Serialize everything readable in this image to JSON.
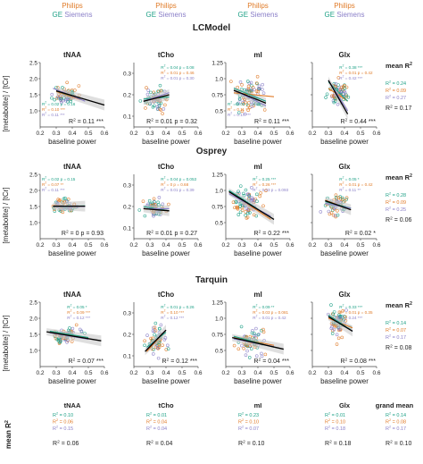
{
  "colors": {
    "philips": "#E07B28",
    "ge": "#1FA187",
    "siemens": "#8A7FC8",
    "ci_band": "#C9C9C9",
    "mean_line": "#000000",
    "text": "#222222",
    "axis": "#444444"
  },
  "legend": {
    "philips": "Philips",
    "ge": "GE",
    "siemens": "Siemens"
  },
  "y_axis_label": "[metabolite] / [tCr]",
  "x_axis_label": "baseline power",
  "sections": [
    {
      "title": "LCModel",
      "mean_header": "mean R",
      "mean_values": [
        "R² = 0.24",
        "R² = 0.09",
        "R² = 0.27"
      ],
      "mean_total": "R² = 0.17"
    },
    {
      "title": "Osprey",
      "mean_header": "mean R",
      "mean_values": [
        "R² = 0.28",
        "R² = 0.09",
        "R² = 0.25"
      ],
      "mean_total": "R² = 0.06"
    },
    {
      "title": "Tarquin",
      "mean_header": "mean R",
      "mean_values": [
        "R² = 0.14",
        "R² = 0.07",
        "R² = 0.17"
      ],
      "mean_total": "R² = 0.08"
    }
  ],
  "bottom": {
    "row_label": "mean R",
    "grand_header": "grand mean",
    "columns": [
      {
        "title": "tNAA",
        "values": [
          "R² = 0.10",
          "R² = 0.06",
          "R² = 0.15"
        ],
        "total": "R² = 0.06"
      },
      {
        "title": "tCho",
        "values": [
          "R² = 0.01",
          "R² = 0.04",
          "R² = 0.04"
        ],
        "total": "R² = 0.04"
      },
      {
        "title": "mI",
        "values": [
          "R² = 0.23",
          "R² = 0.10",
          "R² = 0.07"
        ],
        "total": "R² = 0.10"
      },
      {
        "title": "Glx",
        "values": [
          "R² = 0.01",
          "R² = 0.10",
          "R² = 0.18"
        ],
        "total": "R² = 0.18"
      },
      {
        "title": "",
        "values": [
          "R² = 0.14",
          "R² = 0.08",
          "R² = 0.17"
        ],
        "total": "R² = 0.10"
      }
    ]
  },
  "chart_data": [
    {
      "type": "scatter",
      "section": "LCModel",
      "title": "tNAA",
      "xlim": [
        0.2,
        0.6
      ],
      "ylim": [
        0.5,
        2.5
      ],
      "xticks": [
        0.2,
        0.3,
        0.4,
        0.5,
        0.6
      ],
      "yticks": [
        1.0,
        1.5,
        2.0,
        2.5
      ],
      "show_yticks": true,
      "cloud": {
        "cx": 0.36,
        "sx": 0.035,
        "cy": 1.5,
        "sy": 0.14,
        "n": 70,
        "seed": 11
      },
      "fits": {
        "philips": [
          [
            0.3,
            1.6
          ],
          [
            0.45,
            1.35
          ]
        ],
        "ge": [
          [
            0.3,
            1.62
          ],
          [
            0.45,
            1.38
          ]
        ],
        "siemens": [
          [
            0.28,
            1.7
          ],
          [
            0.48,
            1.3
          ]
        ]
      },
      "mean_fit": [
        [
          0.3,
          1.62
        ],
        [
          0.6,
          1.18
        ]
      ],
      "site_r2": [
        "R² = 0.02  p = 0.16",
        "R² = 0.10 ***",
        "R² = 0.11 ***"
      ],
      "site_r2_pos": "bottom-left",
      "mean_r2": "R² = 0.11 ***"
    },
    {
      "type": "scatter",
      "section": "LCModel",
      "title": "tCho",
      "xlim": [
        0.2,
        0.6
      ],
      "ylim": [
        0.05,
        0.35
      ],
      "xticks": [
        0.2,
        0.3,
        0.4,
        0.5,
        0.6
      ],
      "yticks": [
        0.1,
        0.2,
        0.3
      ],
      "show_yticks": true,
      "cloud": {
        "cx": 0.33,
        "sx": 0.03,
        "cy": 0.18,
        "sy": 0.025,
        "n": 65,
        "seed": 22
      },
      "fits": {
        "philips": [
          [
            0.26,
            0.17
          ],
          [
            0.42,
            0.2
          ]
        ],
        "ge": [
          [
            0.26,
            0.18
          ],
          [
            0.42,
            0.19
          ]
        ],
        "siemens": [
          [
            0.26,
            0.17
          ],
          [
            0.42,
            0.21
          ]
        ]
      },
      "mean_fit": [
        [
          0.26,
          0.17
        ],
        [
          0.42,
          0.2
        ]
      ],
      "site_r2": [
        "R² = 0.04  p = 0.08",
        "R² = 0.01  p = 0.46",
        "R² = 0.01  p = 0.30"
      ],
      "site_r2_pos": "top-right",
      "mean_r2": "R² = 0.01  p = 0.32"
    },
    {
      "type": "scatter",
      "section": "LCModel",
      "title": "mI",
      "xlim": [
        0.2,
        0.6
      ],
      "ylim": [
        0.25,
        1.25
      ],
      "xticks": [
        0.2,
        0.3,
        0.4,
        0.5,
        0.6
      ],
      "yticks": [
        0.5,
        0.75,
        1.0,
        1.25
      ],
      "show_yticks": true,
      "cloud": {
        "cx": 0.35,
        "sx": 0.04,
        "cy": 0.72,
        "sy": 0.12,
        "n": 80,
        "seed": 33
      },
      "fits": {
        "philips": [
          [
            0.25,
            0.78
          ],
          [
            0.5,
            0.72
          ]
        ],
        "ge": [
          [
            0.25,
            0.85
          ],
          [
            0.45,
            0.65
          ]
        ],
        "siemens": [
          [
            0.25,
            0.82
          ],
          [
            0.45,
            0.58
          ]
        ]
      },
      "mean_fit": [
        [
          0.25,
          0.82
        ],
        [
          0.45,
          0.62
        ]
      ],
      "site_r2": [
        "R² = 0.03  p = 0.25",
        "R² = 0.11 ***",
        "R² = 0.17 ***"
      ],
      "site_r2_pos": "bottom-left",
      "mean_r2": "R² = 0.11 ***"
    },
    {
      "type": "scatter",
      "section": "LCModel",
      "title": "Glx",
      "xlim": [
        0.2,
        0.6
      ],
      "ylim": [
        0.5,
        2.5
      ],
      "xticks": [
        0.2,
        0.3,
        0.4,
        0.5,
        0.6
      ],
      "yticks": [
        1.0,
        1.5,
        2.0,
        2.5
      ],
      "show_yticks": false,
      "cloud": {
        "cx": 0.36,
        "sx": 0.03,
        "cy": 1.55,
        "sy": 0.2,
        "n": 70,
        "seed": 44
      },
      "fits": {
        "philips": [
          [
            0.3,
            1.7
          ],
          [
            0.42,
            1.3
          ]
        ],
        "ge": [
          [
            0.3,
            1.9
          ],
          [
            0.42,
            1.3
          ]
        ],
        "siemens": [
          [
            0.3,
            1.95
          ],
          [
            0.42,
            1.0
          ]
        ]
      },
      "mean_fit": [
        [
          0.3,
          1.95
        ],
        [
          0.42,
          0.9
        ]
      ],
      "site_r2": [
        "R² = 0.38 ***",
        "R² = 0.01  p = 0.42",
        "R² = 0.42 ***"
      ],
      "site_r2_pos": "top-right",
      "mean_r2": "R² = 0.44 ***"
    },
    {
      "type": "scatter",
      "section": "Osprey",
      "title": "tNAA",
      "xlim": [
        0.2,
        0.6
      ],
      "ylim": [
        0.5,
        2.5
      ],
      "xticks": [
        0.2,
        0.3,
        0.4,
        0.5,
        0.6
      ],
      "yticks": [
        1.0,
        1.5,
        2.0,
        2.5
      ],
      "show_yticks": true,
      "cloud": {
        "cx": 0.35,
        "sx": 0.04,
        "cy": 1.5,
        "sy": 0.1,
        "n": 70,
        "seed": 55
      },
      "fits": {
        "philips": [
          [
            0.28,
            1.52
          ],
          [
            0.48,
            1.5
          ]
        ],
        "ge": [
          [
            0.28,
            1.5
          ],
          [
            0.48,
            1.52
          ]
        ],
        "siemens": [
          [
            0.28,
            1.51
          ],
          [
            0.48,
            1.5
          ]
        ]
      },
      "mean_fit": [
        [
          0.28,
          1.51
        ],
        [
          0.48,
          1.51
        ]
      ],
      "site_r2": [
        "R² = 0.02  p = 0.15",
        "R² = 0.07 **",
        "R² = 0.11 ***"
      ],
      "site_r2_pos": "top-left",
      "mean_r2": "R² = 0  p = 0.93"
    },
    {
      "type": "scatter",
      "section": "Osprey",
      "title": "tCho",
      "xlim": [
        0.2,
        0.6
      ],
      "ylim": [
        0.05,
        0.35
      ],
      "xticks": [
        0.2,
        0.3,
        0.4,
        0.5,
        0.6
      ],
      "yticks": [
        0.1,
        0.2,
        0.3
      ],
      "show_yticks": true,
      "cloud": {
        "cx": 0.33,
        "sx": 0.03,
        "cy": 0.19,
        "sy": 0.02,
        "n": 65,
        "seed": 66
      },
      "fits": {
        "philips": [
          [
            0.26,
            0.19
          ],
          [
            0.42,
            0.18
          ]
        ],
        "ge": [
          [
            0.26,
            0.2
          ],
          [
            0.42,
            0.18
          ]
        ],
        "siemens": [
          [
            0.26,
            0.19
          ],
          [
            0.42,
            0.19
          ]
        ]
      },
      "mean_fit": [
        [
          0.26,
          0.19
        ],
        [
          0.42,
          0.18
        ]
      ],
      "site_r2": [
        "R² = 0.04  p = 0.053",
        "R² = 0  p = 0.68",
        "R² = 0.01  p = 0.39"
      ],
      "site_r2_pos": "top-right",
      "mean_r2": "R² = 0.01  p = 0.27"
    },
    {
      "type": "scatter",
      "section": "Osprey",
      "title": "mI",
      "xlim": [
        0.2,
        0.6
      ],
      "ylim": [
        0.25,
        1.25
      ],
      "xticks": [
        0.2,
        0.3,
        0.4,
        0.5,
        0.6
      ],
      "yticks": [
        0.5,
        0.75,
        1.0,
        1.25
      ],
      "show_yticks": true,
      "cloud": {
        "cx": 0.33,
        "sx": 0.05,
        "cy": 0.8,
        "sy": 0.12,
        "n": 90,
        "seed": 77
      },
      "fits": {
        "philips": [
          [
            0.22,
            0.98
          ],
          [
            0.48,
            0.55
          ]
        ],
        "ge": [
          [
            0.22,
            1.0
          ],
          [
            0.48,
            0.58
          ]
        ],
        "siemens": [
          [
            0.22,
            0.95
          ],
          [
            0.48,
            0.6
          ]
        ]
      },
      "mean_fit": [
        [
          0.22,
          0.98
        ],
        [
          0.5,
          0.55
        ]
      ],
      "site_r2": [
        "R² = 0.25 ***",
        "R² = 0.26 ***",
        "R² = 0.03  p = 0.093"
      ],
      "site_r2_pos": "top-right",
      "mean_r2": "R² = 0.22 ***"
    },
    {
      "type": "scatter",
      "section": "Osprey",
      "title": "Glx",
      "xlim": [
        0.2,
        0.6
      ],
      "ylim": [
        0.5,
        2.5
      ],
      "xticks": [
        0.2,
        0.3,
        0.4,
        0.5,
        0.6
      ],
      "yticks": [
        1.0,
        1.5,
        2.0,
        2.5
      ],
      "show_yticks": false,
      "cloud": {
        "cx": 0.35,
        "sx": 0.03,
        "cy": 1.55,
        "sy": 0.15,
        "n": 70,
        "seed": 88
      },
      "fits": {
        "philips": [
          [
            0.28,
            1.7
          ],
          [
            0.44,
            1.4
          ]
        ],
        "ge": [
          [
            0.28,
            1.65
          ],
          [
            0.44,
            1.45
          ]
        ],
        "siemens": [
          [
            0.28,
            1.6
          ],
          [
            0.44,
            1.45
          ]
        ]
      },
      "mean_fit": [
        [
          0.28,
          1.68
        ],
        [
          0.44,
          1.4
        ]
      ],
      "site_r2": [
        "R² = 0.05 *",
        "R² = 0.01  p = 0.42",
        "R² = 0.11 **"
      ],
      "site_r2_pos": "top-right",
      "mean_r2": "R² = 0.02 *"
    },
    {
      "type": "scatter",
      "section": "Tarquin",
      "title": "tNAA",
      "xlim": [
        0.2,
        0.6
      ],
      "ylim": [
        0.5,
        2.5
      ],
      "xticks": [
        0.2,
        0.3,
        0.4,
        0.5,
        0.6
      ],
      "yticks": [
        1.0,
        1.5,
        2.0,
        2.5
      ],
      "show_yticks": true,
      "cloud": {
        "cx": 0.36,
        "sx": 0.04,
        "cy": 1.45,
        "sy": 0.12,
        "n": 70,
        "seed": 99
      },
      "fits": {
        "philips": [
          [
            0.26,
            1.58
          ],
          [
            0.5,
            1.38
          ]
        ],
        "ge": [
          [
            0.26,
            1.6
          ],
          [
            0.5,
            1.4
          ]
        ],
        "siemens": [
          [
            0.26,
            1.55
          ],
          [
            0.5,
            1.35
          ]
        ]
      },
      "mean_fit": [
        [
          0.24,
          1.58
        ],
        [
          0.58,
          1.3
        ]
      ],
      "site_r2": [
        "R² = 0.05 *",
        "R² = 0.09 ***",
        "R² = 0.12 ***"
      ],
      "site_r2_pos": "top-right",
      "mean_r2": "R² = 0.07 ***"
    },
    {
      "type": "scatter",
      "section": "Tarquin",
      "title": "tCho",
      "xlim": [
        0.2,
        0.6
      ],
      "ylim": [
        0.05,
        0.35
      ],
      "xticks": [
        0.2,
        0.3,
        0.4,
        0.5,
        0.6
      ],
      "yticks": [
        0.1,
        0.2,
        0.3
      ],
      "show_yticks": true,
      "cloud": {
        "cx": 0.34,
        "sx": 0.03,
        "cy": 0.17,
        "sy": 0.03,
        "n": 70,
        "seed": 111
      },
      "fits": {
        "philips": [
          [
            0.28,
            0.12
          ],
          [
            0.4,
            0.22
          ]
        ],
        "ge": [
          [
            0.28,
            0.14
          ],
          [
            0.4,
            0.21
          ]
        ],
        "siemens": [
          [
            0.28,
            0.13
          ],
          [
            0.4,
            0.22
          ]
        ]
      },
      "mean_fit": [
        [
          0.27,
          0.12
        ],
        [
          0.4,
          0.22
        ]
      ],
      "site_r2": [
        "R² = 0.01  p = 0.26",
        "R² = 0.10 ***",
        "R² = 0.12 ***"
      ],
      "site_r2_pos": "top-right",
      "mean_r2": "R² = 0.12 ***"
    },
    {
      "type": "scatter",
      "section": "Tarquin",
      "title": "mI",
      "xlim": [
        0.2,
        0.6
      ],
      "ylim": [
        0.25,
        1.25
      ],
      "xticks": [
        0.2,
        0.3,
        0.4,
        0.5,
        0.6
      ],
      "yticks": [
        0.5,
        0.75,
        1.0,
        1.25
      ],
      "show_yticks": true,
      "cloud": {
        "cx": 0.36,
        "sx": 0.04,
        "cy": 0.62,
        "sy": 0.1,
        "n": 80,
        "seed": 122
      },
      "fits": {
        "philips": [
          [
            0.25,
            0.7
          ],
          [
            0.5,
            0.58
          ]
        ],
        "ge": [
          [
            0.25,
            0.72
          ],
          [
            0.5,
            0.55
          ]
        ],
        "siemens": [
          [
            0.25,
            0.68
          ],
          [
            0.5,
            0.56
          ]
        ]
      },
      "mean_fit": [
        [
          0.24,
          0.7
        ],
        [
          0.56,
          0.52
        ]
      ],
      "site_r2": [
        "R² = 0.09 **",
        "R² = 0.03  p = 0.081",
        "R² = 0.01  p = 0.42"
      ],
      "site_r2_pos": "top-right",
      "mean_r2": "R² = 0.04 ***"
    },
    {
      "type": "scatter",
      "section": "Tarquin",
      "title": "Glx",
      "xlim": [
        0.2,
        0.6
      ],
      "ylim": [
        0.5,
        2.5
      ],
      "xticks": [
        0.2,
        0.3,
        0.4,
        0.5,
        0.6
      ],
      "yticks": [
        1.0,
        1.5,
        2.0,
        2.5
      ],
      "show_yticks": false,
      "cloud": {
        "cx": 0.36,
        "sx": 0.03,
        "cy": 1.9,
        "sy": 0.2,
        "n": 70,
        "seed": 133
      },
      "fits": {
        "philips": [
          [
            0.3,
            2.0
          ],
          [
            0.45,
            1.7
          ]
        ],
        "ge": [
          [
            0.3,
            2.1
          ],
          [
            0.45,
            1.6
          ]
        ],
        "siemens": [
          [
            0.3,
            2.05
          ],
          [
            0.45,
            1.6
          ]
        ]
      },
      "mean_fit": [
        [
          0.3,
          2.05
        ],
        [
          0.45,
          1.6
        ]
      ],
      "site_r2": [
        "R² = 0.33 ***",
        "R² = 0.01  p = 0.35",
        "R² = 0.24 ***"
      ],
      "site_r2_pos": "top-right",
      "mean_r2": "R² = 0.08 ***"
    }
  ]
}
